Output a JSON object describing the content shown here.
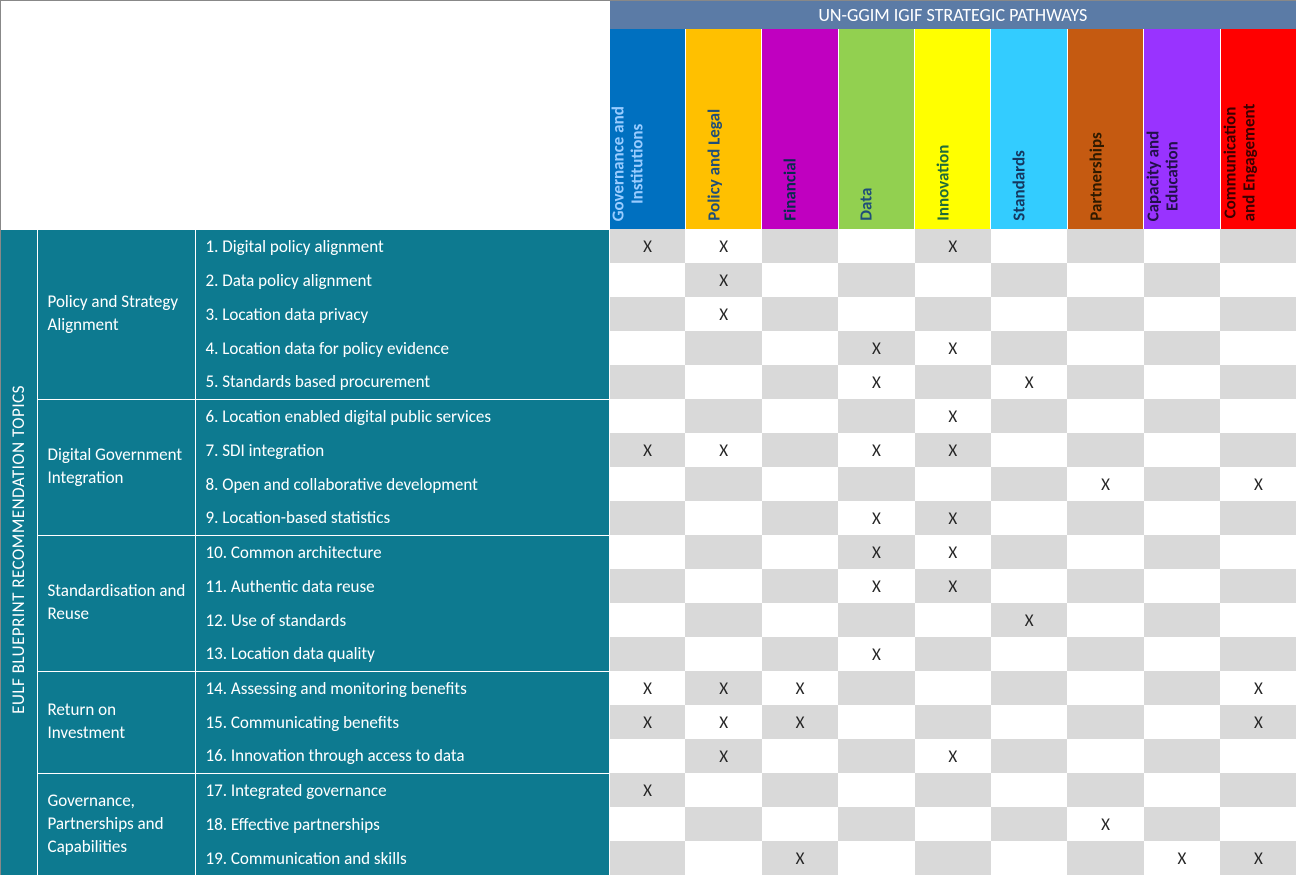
{
  "title_top": "UN-GGIM IGIF STRATEGIC PATHWAYS",
  "title_left": "EULF BLUEPRINT RECOMMENDATION TOPICS",
  "mark": "X",
  "colors": {
    "top_header_bg": "#5b7ba6",
    "teal": "#0d7a90",
    "grid_a": "#ffffff",
    "grid_b": "#d9d9d9",
    "text_dark": "#262626"
  },
  "pathways": [
    {
      "label_l1": "Governance and",
      "label_l2": "Institutions",
      "bg": "#0070c0",
      "fg": "#99ccff"
    },
    {
      "label_l1": "Policy and Legal",
      "label_l2": "",
      "bg": "#ffc000",
      "fg": "#1f4e79"
    },
    {
      "label_l1": "Financial",
      "label_l2": "",
      "bg": "#c000c0",
      "fg": "#072b4e"
    },
    {
      "label_l1": "Data",
      "label_l2": "",
      "bg": "#92d050",
      "fg": "#1f4e79"
    },
    {
      "label_l1": "Innovation",
      "label_l2": "",
      "bg": "#ffff00",
      "fg": "#1f6b3a"
    },
    {
      "label_l1": "Standards",
      "label_l2": "",
      "bg": "#33ccff",
      "fg": "#15375f"
    },
    {
      "label_l1": "Partnerships",
      "label_l2": "",
      "bg": "#c55a11",
      "fg": "#2e1a00"
    },
    {
      "label_l1": "Capacity and",
      "label_l2": "Education",
      "bg": "#9933ff",
      "fg": "#22104a"
    },
    {
      "label_l1": "Communication",
      "label_l2": "and Engagement",
      "bg": "#ff0000",
      "fg": "#3a0000"
    }
  ],
  "groups": [
    {
      "label": "Policy and Strategy Alignment",
      "rows": 5
    },
    {
      "label": "Digital Government Integration",
      "rows": 4
    },
    {
      "label": "Standardisation and Reuse",
      "rows": 4
    },
    {
      "label": "Return on Investment",
      "rows": 3
    },
    {
      "label": "Governance, Partnerships and Capabilities",
      "rows": 3
    }
  ],
  "rows": [
    {
      "topic": "1. Digital policy alignment",
      "marks": [
        1,
        1,
        0,
        0,
        1,
        0,
        0,
        0,
        0
      ]
    },
    {
      "topic": "2. Data policy alignment",
      "marks": [
        0,
        1,
        0,
        0,
        0,
        0,
        0,
        0,
        0
      ]
    },
    {
      "topic": "3. Location data privacy",
      "marks": [
        0,
        1,
        0,
        0,
        0,
        0,
        0,
        0,
        0
      ]
    },
    {
      "topic": "4. Location data for policy evidence",
      "marks": [
        0,
        0,
        0,
        1,
        1,
        0,
        0,
        0,
        0
      ]
    },
    {
      "topic": "5. Standards based procurement",
      "marks": [
        0,
        0,
        0,
        1,
        0,
        1,
        0,
        0,
        0
      ]
    },
    {
      "topic": "6. Location enabled digital public services",
      "marks": [
        0,
        0,
        0,
        0,
        1,
        0,
        0,
        0,
        0
      ]
    },
    {
      "topic": "7. SDI integration",
      "marks": [
        1,
        1,
        0,
        1,
        1,
        0,
        0,
        0,
        0
      ]
    },
    {
      "topic": "8. Open and collaborative development",
      "marks": [
        0,
        0,
        0,
        0,
        0,
        0,
        1,
        0,
        1
      ]
    },
    {
      "topic": "9. Location-based statistics",
      "marks": [
        0,
        0,
        0,
        1,
        1,
        0,
        0,
        0,
        0
      ]
    },
    {
      "topic": "10. Common architecture",
      "marks": [
        0,
        0,
        0,
        1,
        1,
        0,
        0,
        0,
        0
      ]
    },
    {
      "topic": "11. Authentic data reuse",
      "marks": [
        0,
        0,
        0,
        1,
        1,
        0,
        0,
        0,
        0
      ]
    },
    {
      "topic": "12. Use of standards",
      "marks": [
        0,
        0,
        0,
        0,
        0,
        1,
        0,
        0,
        0
      ]
    },
    {
      "topic": "13. Location data quality",
      "marks": [
        0,
        0,
        0,
        1,
        0,
        0,
        0,
        0,
        0
      ]
    },
    {
      "topic": "14. Assessing and monitoring benefits",
      "marks": [
        1,
        1,
        1,
        0,
        0,
        0,
        0,
        0,
        1
      ]
    },
    {
      "topic": "15. Communicating benefits",
      "marks": [
        1,
        1,
        1,
        0,
        0,
        0,
        0,
        0,
        1
      ]
    },
    {
      "topic": "16. Innovation through access to data",
      "marks": [
        0,
        1,
        0,
        0,
        1,
        0,
        0,
        0,
        0
      ]
    },
    {
      "topic": "17. Integrated governance",
      "marks": [
        1,
        0,
        0,
        0,
        0,
        0,
        0,
        0,
        0
      ]
    },
    {
      "topic": "18. Effective partnerships",
      "marks": [
        0,
        0,
        0,
        0,
        0,
        0,
        1,
        0,
        0
      ]
    },
    {
      "topic": "19. Communication and skills",
      "marks": [
        0,
        0,
        1,
        0,
        0,
        0,
        0,
        1,
        1
      ]
    }
  ]
}
